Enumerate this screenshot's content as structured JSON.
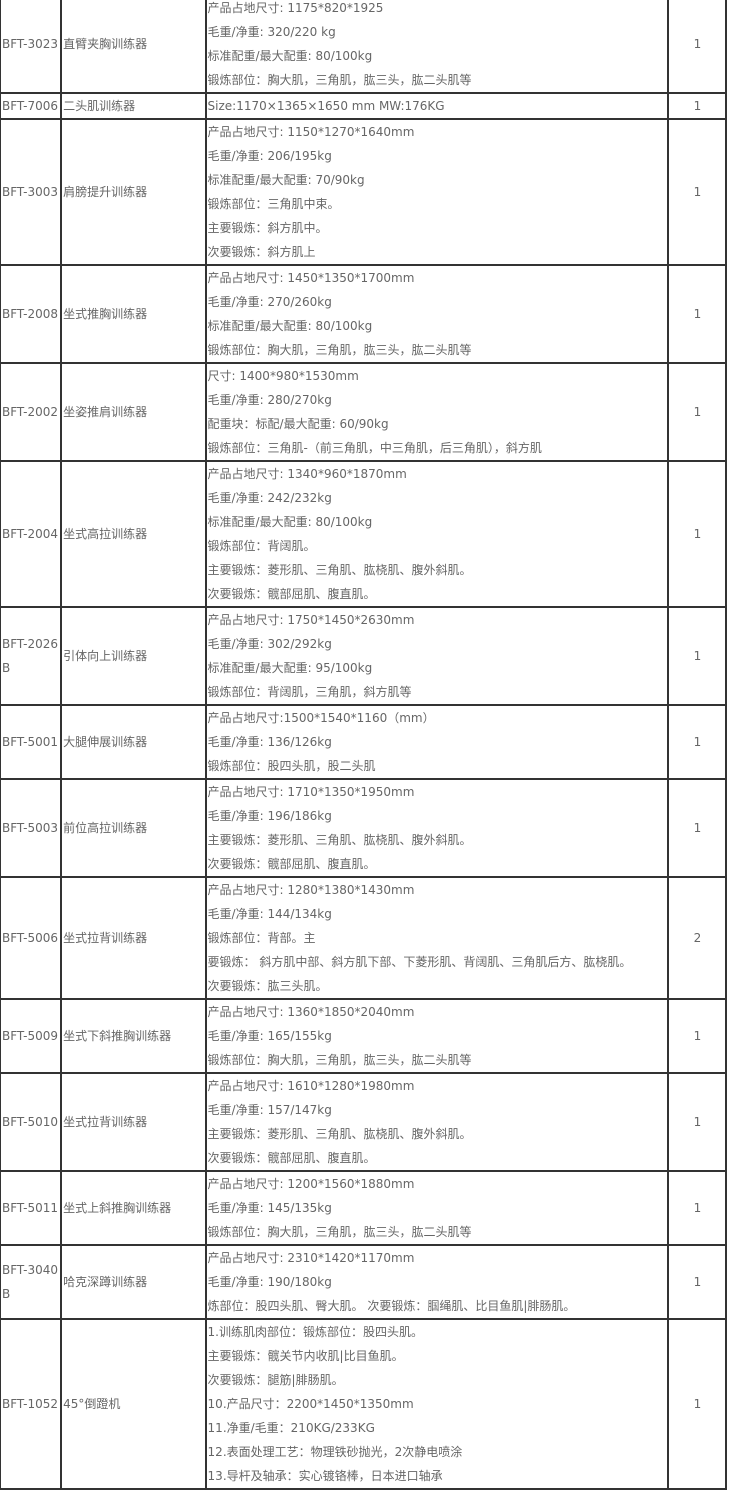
{
  "rows": [
    {
      "model": "BFT-3023",
      "name": "直臂夹胸训练器",
      "specs": [
        "产品占地尺寸: 1175*820*1925",
        "毛重/净重: 320/220 kg",
        "标准配重/最大配重: 80/100kg",
        "锻炼部位：胸大肌，三角肌，肱三头，肱二头肌等"
      ],
      "qty": "1"
    },
    {
      "model": "BFT-7006",
      "name": "二头肌训练器",
      "specs": [
        "Size:1170×1365×1650 mm MW:176KG"
      ],
      "qty": "1"
    },
    {
      "model": "BFT-3003",
      "name": "肩膀提升训练器",
      "specs": [
        "产品占地尺寸: 1150*1270*1640mm",
        "毛重/净重: 206/195kg",
        "标准配重/最大配重: 70/90kg",
        "锻炼部位：三角肌中束。",
        "主要锻炼：斜方肌中。",
        "次要锻炼：斜方肌上"
      ],
      "qty": "1"
    },
    {
      "model": "BFT-2008",
      "name": "坐式推胸训练器",
      "specs": [
        "产品占地尺寸: 1450*1350*1700mm",
        "毛重/净重: 270/260kg",
        "标准配重/最大配重: 80/100kg",
        "锻炼部位：胸大肌，三角肌，肱三头，肱二头肌等"
      ],
      "qty": "1"
    },
    {
      "model": "BFT-2002",
      "name": "坐姿推肩训练器",
      "specs": [
        "尺寸: 1400*980*1530mm",
        "毛重/净重: 280/270kg",
        "配重块：标配/最大配重: 60/90kg",
        "锻炼部位：三角肌-（前三角肌，中三角肌，后三角肌），斜方肌"
      ],
      "qty": "1"
    },
    {
      "model": "BFT-2004",
      "name": "坐式高拉训练器",
      "specs": [
        "产品占地尺寸: 1340*960*1870mm",
        "毛重/净重: 242/232kg",
        "标准配重/最大配重: 80/100kg",
        "锻炼部位：背阔肌。",
        "主要锻炼：菱形肌、三角肌、肱桡肌、腹外斜肌。",
        "次要锻炼：髋部屈肌、腹直肌。"
      ],
      "qty": "1"
    },
    {
      "model": "BFT-2026B",
      "name": "引体向上训练器",
      "specs": [
        "产品占地尺寸: 1750*1450*2630mm",
        "毛重/净重: 302/292kg",
        "标准配重/最大配重: 95/100kg",
        "锻炼部位：背阔肌，三角肌，斜方肌等"
      ],
      "qty": "1"
    },
    {
      "model": "BFT-5001",
      "name": "大腿伸展训练器",
      "specs": [
        "产品占地尺寸:1500*1540*1160（mm）",
        "毛重/净重: 136/126kg",
        "锻炼部位：股四头肌，股二头肌"
      ],
      "qty": "1"
    },
    {
      "model": "BFT-5003",
      "name": "前位高拉训练器",
      "specs": [
        "产品占地尺寸: 1710*1350*1950mm",
        "毛重/净重: 196/186kg",
        "主要锻炼：菱形肌、三角肌、肱桡肌、腹外斜肌。",
        "次要锻炼：髋部屈肌、腹直肌。"
      ],
      "qty": "1"
    },
    {
      "model": "BFT-5006",
      "name": "坐式拉背训练器",
      "specs": [
        "产品占地尺寸: 1280*1380*1430mm",
        "毛重/净重: 144/134kg",
        "锻炼部位：背部。主",
        "要锻炼： 斜方肌中部、斜方肌下部、下菱形肌、背阔肌、三角肌后方、肱桡肌。",
        "次要锻炼：肱三头肌。"
      ],
      "qty": "2"
    },
    {
      "model": "BFT-5009",
      "name": "坐式下斜推胸训练器",
      "specs": [
        "产品占地尺寸: 1360*1850*2040mm",
        "毛重/净重: 165/155kg",
        "锻炼部位：胸大肌，三角肌，肱三头，肱二头肌等"
      ],
      "qty": "1"
    },
    {
      "model": "BFT-5010",
      "name": "坐式拉背训练器",
      "specs": [
        "产品占地尺寸: 1610*1280*1980mm",
        "毛重/净重: 157/147kg",
        "主要锻炼：菱形肌、三角肌、肱桡肌、腹外斜肌。",
        "次要锻炼：髋部屈肌、腹直肌。"
      ],
      "qty": "1"
    },
    {
      "model": "BFT-5011",
      "name": "坐式上斜推胸训练器",
      "specs": [
        "产品占地尺寸: 1200*1560*1880mm",
        "毛重/净重: 145/135kg",
        "锻炼部位：胸大肌，三角肌，肱三头，肱二头肌等"
      ],
      "qty": "1"
    },
    {
      "model": "BFT-3040B",
      "name": "哈克深蹲训练器",
      "specs": [
        "产品占地尺寸: 2310*1420*1170mm",
        "毛重/净重: 190/180kg",
        "炼部位：股四头肌、臀大肌。 次要锻炼：腘绳肌、比目鱼肌|腓肠肌。"
      ],
      "qty": "1"
    },
    {
      "model": "BFT-1052",
      "name": "45°倒蹬机",
      "specs": [
        "1.训练肌肉部位：锻炼部位：股四头肌。",
        "主要锻炼：髋关节内收肌|比目鱼肌。",
        "次要锻炼：腿筋|腓肠肌。",
        "10.产品尺寸：2200*1450*1350mm",
        "11.净重/毛重：210KG/233KG",
        "12.表面处理工艺：物理铁砂抛光，2次静电喷涂",
        "13.导杆及轴承：实心镀铬棒，日本进口轴承"
      ],
      "qty": "1"
    }
  ]
}
